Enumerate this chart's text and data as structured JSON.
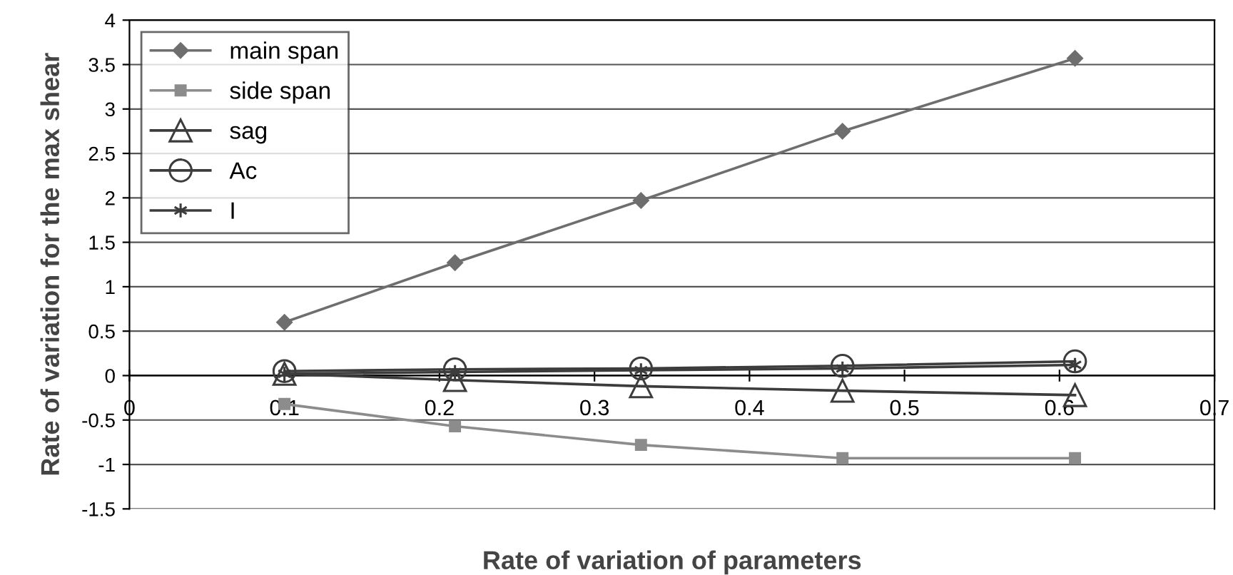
{
  "chart_data": {
    "type": "line",
    "xlabel": "Rate of variation of parameters",
    "ylabel": "Rate of variation for the max shear",
    "x": [
      0.1,
      0.21,
      0.33,
      0.46,
      0.61
    ],
    "series": [
      {
        "name": "main span",
        "color": "#6e6e6e",
        "marker": "diamond",
        "values": [
          0.6,
          1.27,
          1.97,
          2.75,
          3.57
        ]
      },
      {
        "name": "side span",
        "color": "#8c8c8c",
        "marker": "square",
        "values": [
          -0.32,
          -0.57,
          -0.78,
          -0.93,
          -0.93
        ]
      },
      {
        "name": "sag",
        "color": "#3c3c3c",
        "marker": "triangle",
        "values": [
          0.02,
          -0.05,
          -0.12,
          -0.17,
          -0.22
        ]
      },
      {
        "name": "Ac",
        "color": "#3c3c3c",
        "marker": "circle",
        "values": [
          0.05,
          0.07,
          0.08,
          0.11,
          0.16
        ]
      },
      {
        "name": "I",
        "color": "#3c3c3c",
        "marker": "cross",
        "values": [
          0.02,
          0.04,
          0.06,
          0.08,
          0.12
        ]
      }
    ],
    "xlim": [
      0,
      0.7
    ],
    "xticks": [
      0,
      0.1,
      0.2,
      0.3,
      0.4,
      0.5,
      0.6,
      0.7
    ],
    "ylim": [
      -1.5,
      4
    ],
    "yticks": [
      -1.5,
      -1,
      -0.5,
      0,
      0.5,
      1,
      1.5,
      2,
      2.5,
      3,
      3.5,
      4
    ],
    "grid": "y",
    "legend": "top left",
    "line_style": "solid"
  }
}
